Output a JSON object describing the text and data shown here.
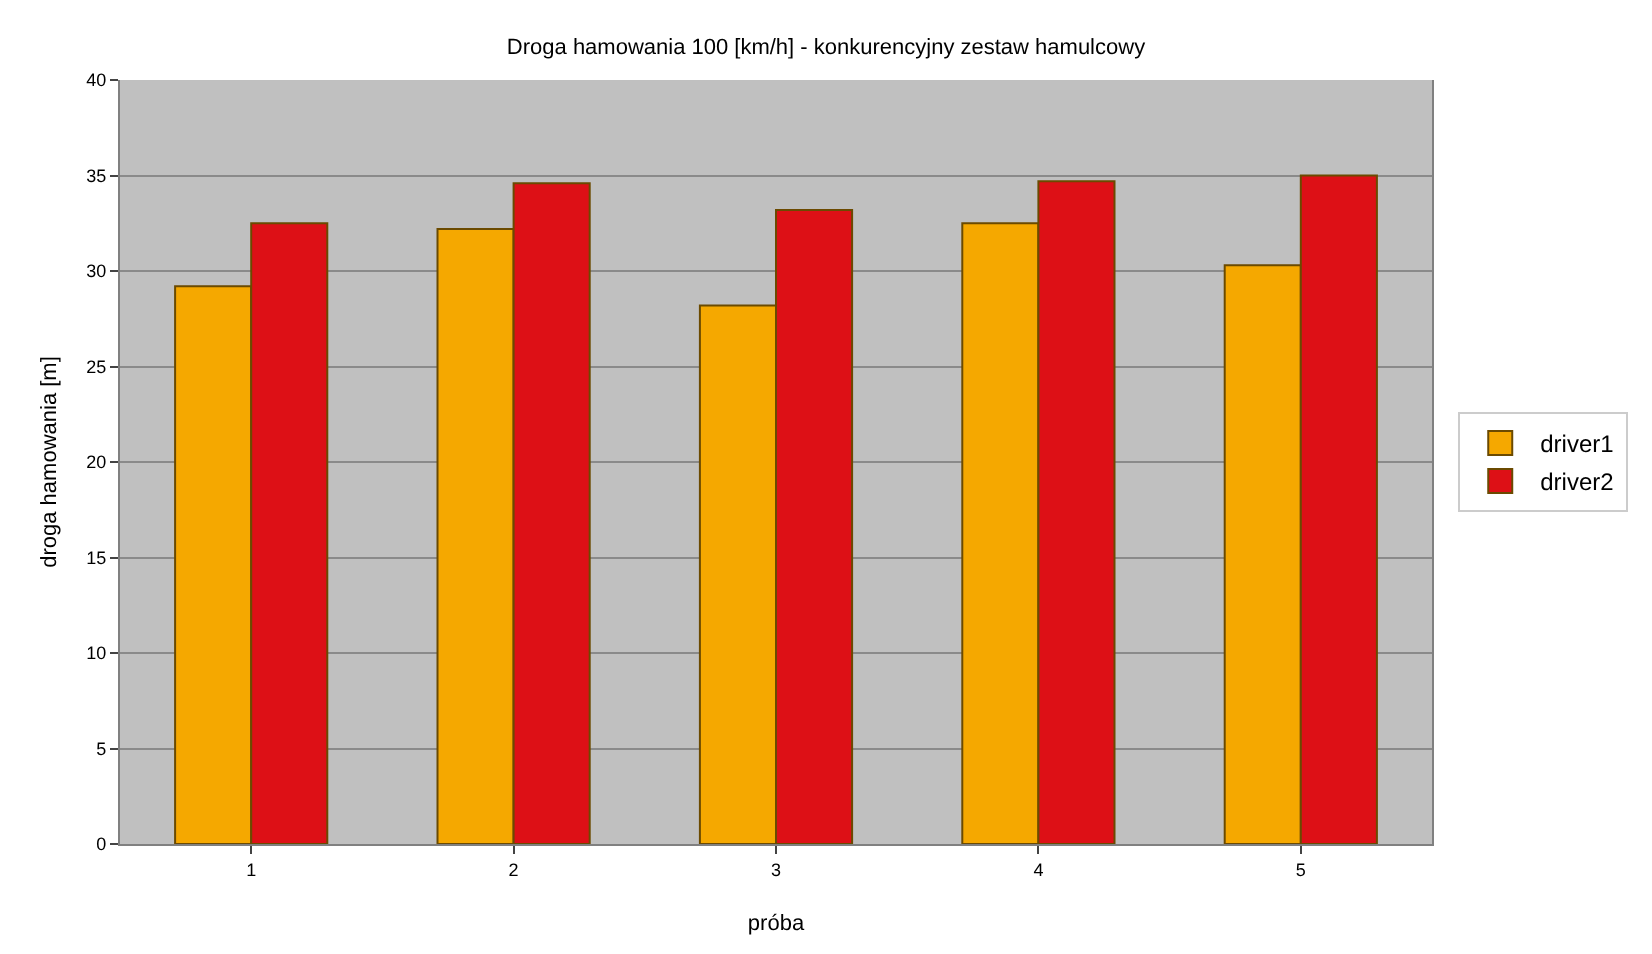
{
  "chart_data": {
    "type": "bar",
    "title": "Droga hamowania 100 [km/h] - konkurencyjny zestaw hamulcowy",
    "xlabel": "próba",
    "ylabel": "droga hamowania [m]",
    "categories": [
      "1",
      "2",
      "3",
      "4",
      "5"
    ],
    "series": [
      {
        "name": "driver1",
        "color": "#f5a800",
        "values": [
          29.2,
          32.2,
          28.2,
          32.5,
          30.3
        ]
      },
      {
        "name": "driver2",
        "color": "#dd1016",
        "values": [
          32.5,
          34.6,
          33.2,
          34.7,
          35.0
        ]
      }
    ],
    "ylim": [
      0,
      40
    ],
    "yticks": [
      0,
      5,
      10,
      15,
      20,
      25,
      30,
      35,
      40
    ],
    "grid": "y",
    "legend": "right"
  }
}
